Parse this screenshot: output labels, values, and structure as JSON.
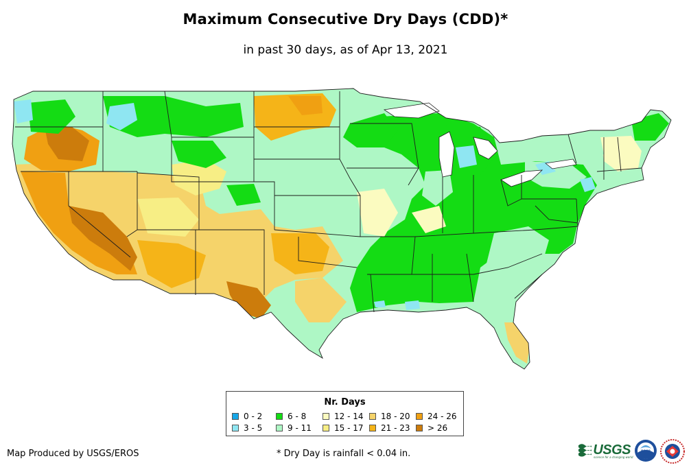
{
  "title": "Maximum Consecutive Dry Days (CDD)*",
  "subtitle": "in past 30 days, as of Apr 13, 2021",
  "legend": {
    "title": "Nr. Days",
    "items": [
      {
        "label": "0 - 2",
        "color": "#17a7e8"
      },
      {
        "label": "3 - 5",
        "color": "#8fe6f2"
      },
      {
        "label": "6 - 8",
        "color": "#14dc14"
      },
      {
        "label": "9 - 11",
        "color": "#aef7c5"
      },
      {
        "label": "12 - 14",
        "color": "#fbfbc0"
      },
      {
        "label": "15 - 17",
        "color": "#f7ee85"
      },
      {
        "label": "18 - 20",
        "color": "#f5d36a"
      },
      {
        "label": "21 - 23",
        "color": "#f5b418"
      },
      {
        "label": "24 - 26",
        "color": "#f0a012"
      },
      {
        "label": "> 26",
        "color": "#cc7c0c"
      }
    ]
  },
  "credit": "Map Produced by USGS/EROS",
  "footnote": "* Dry Day is rainfall < 0.04 in.",
  "logos": {
    "usgs": "USGS",
    "usgs_tagline": "science for a changing world",
    "noaa": "noaa",
    "nws": "national-weather-service-logo"
  },
  "colors": {
    "border": "#1c1c1c"
  }
}
